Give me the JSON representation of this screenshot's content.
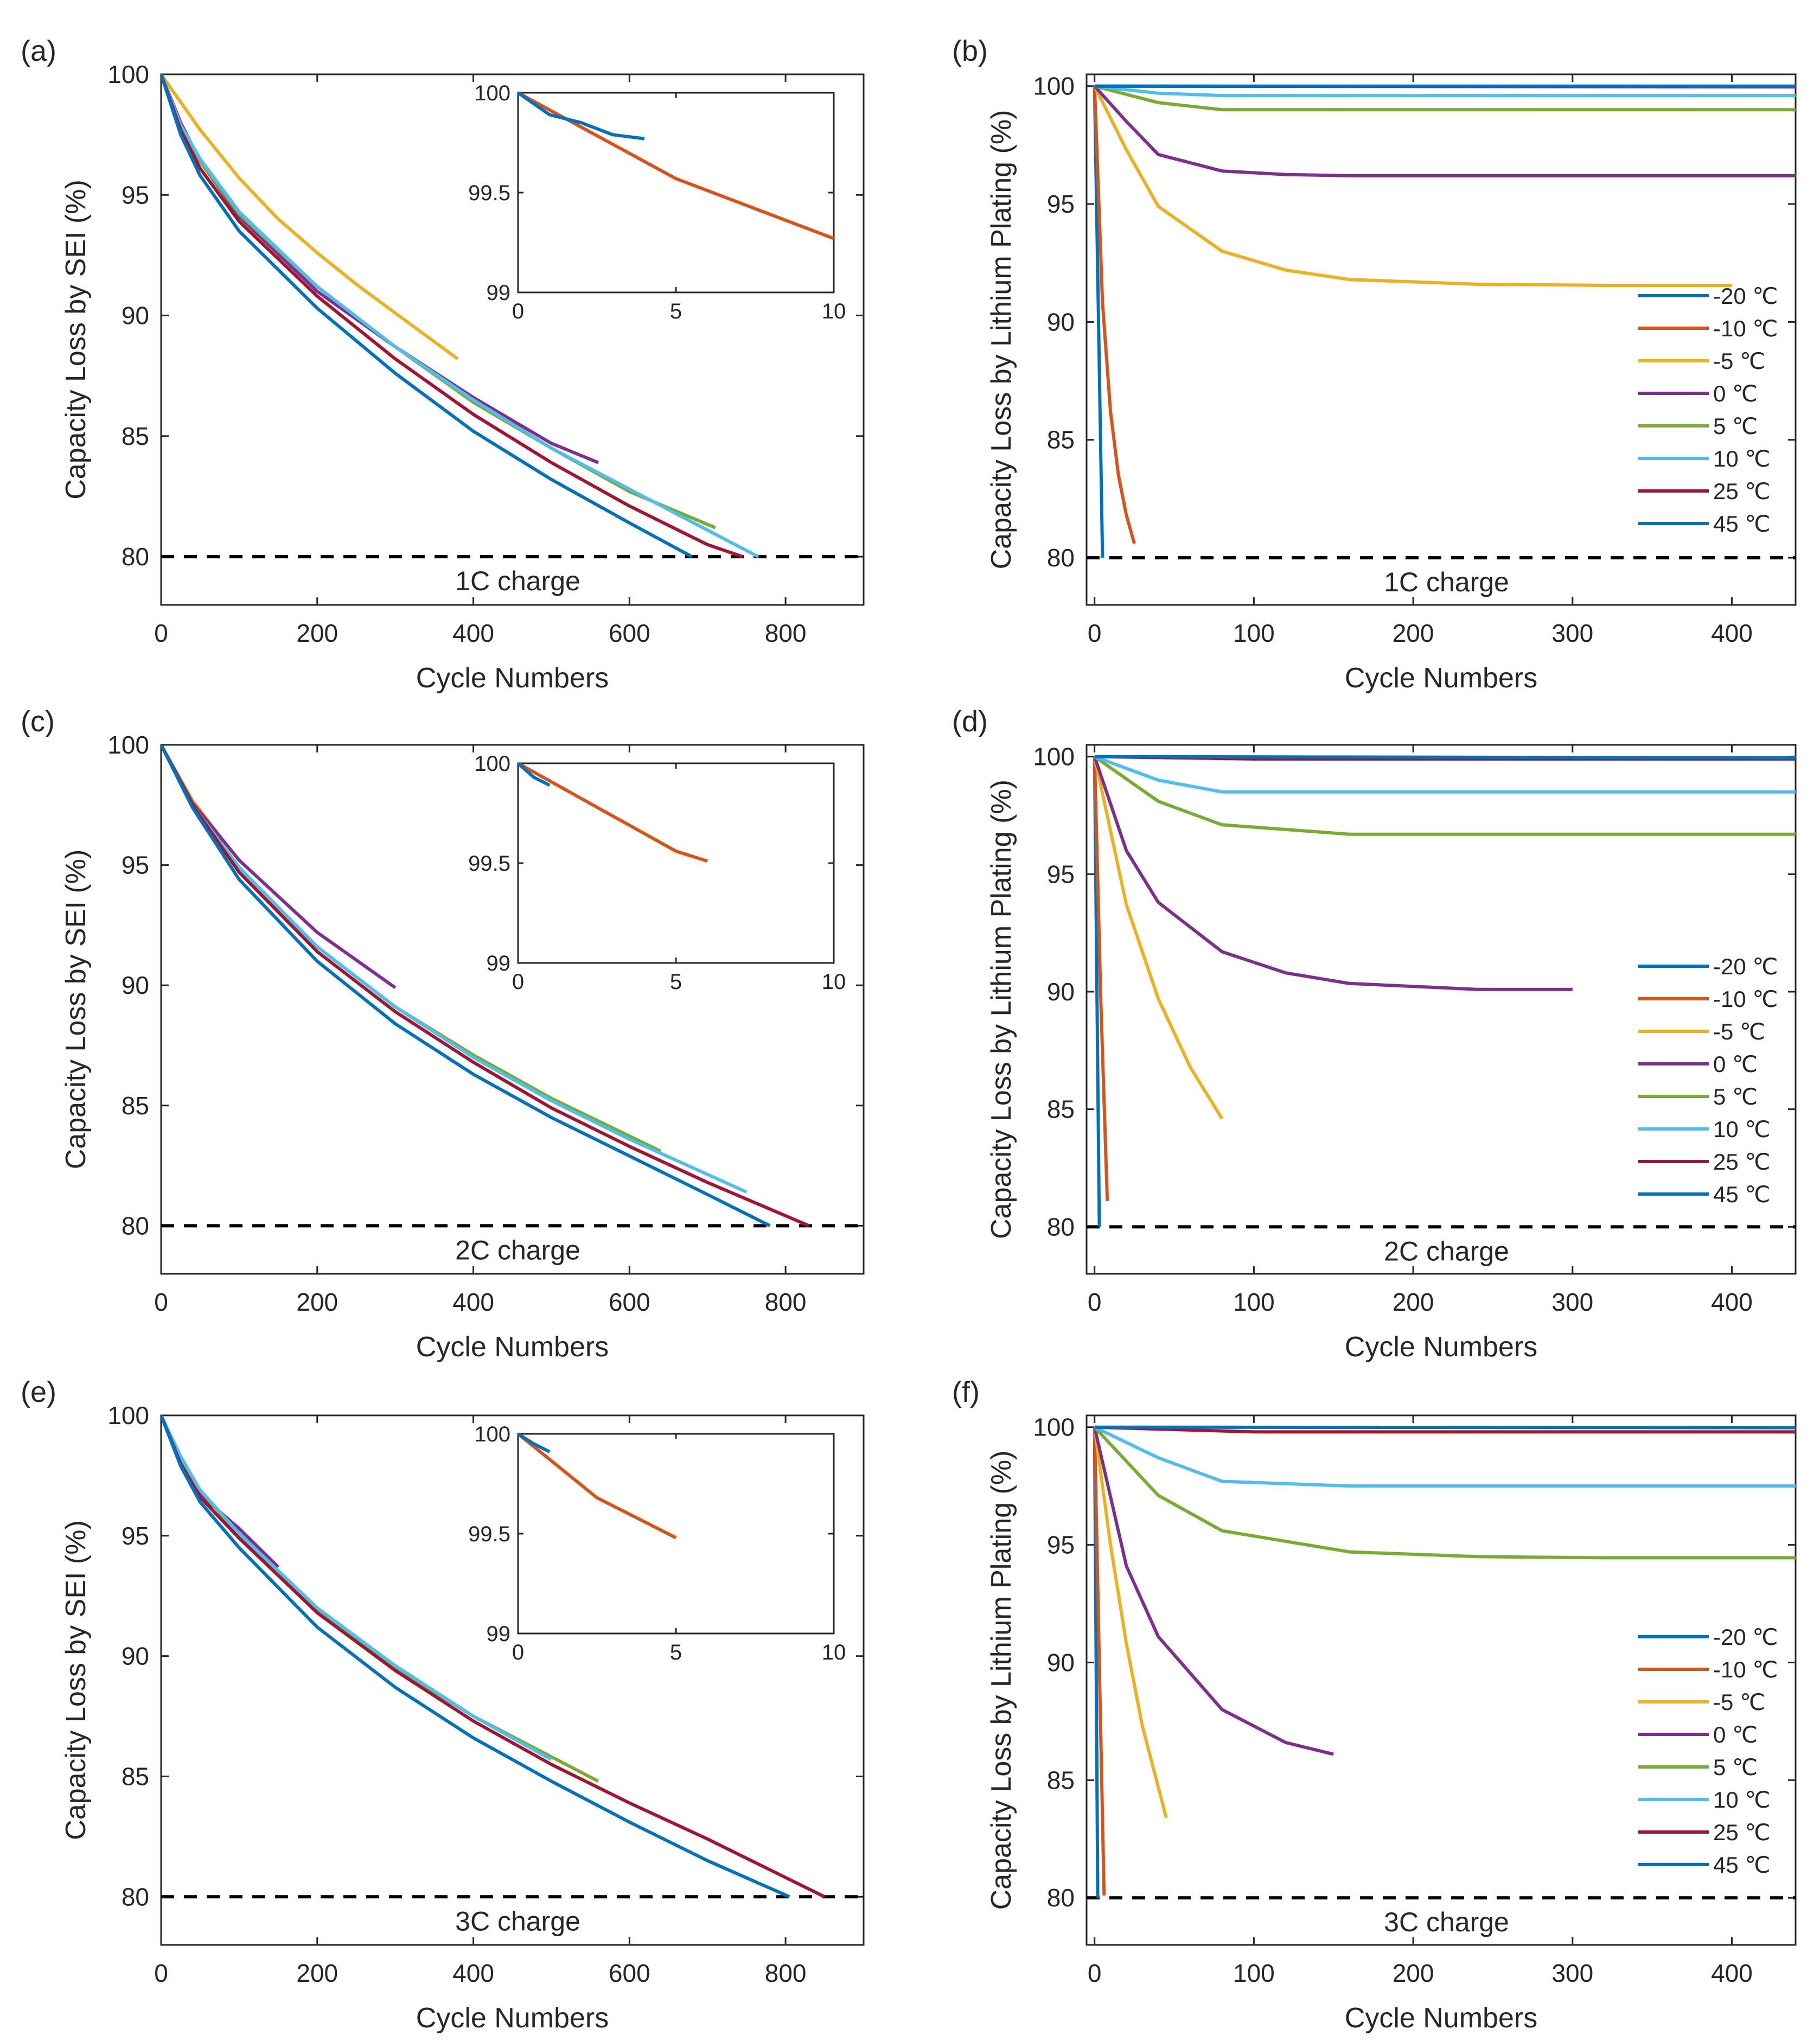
{
  "figure": {
    "series_names": [
      "-20 ℃",
      "-10 ℃",
      "-5 ℃",
      "0 ℃",
      "5 ℃",
      "10 ℃",
      "25 ℃",
      "45 ℃"
    ],
    "colors": {
      "-20 ℃": "#0072BD",
      "-10 ℃": "#D95319",
      "-5 ℃": "#EDB120",
      "0 ℃": "#7E2F8E",
      "5 ℃": "#77AC30",
      "10 ℃": "#4DBEEE",
      "25 ℃": "#A2142F",
      "45 ℃": "#0072BD"
    }
  },
  "chart_data": [
    {
      "panel": "(a)",
      "type": "line",
      "xlabel": "Cycle Numbers",
      "ylabel": "Capacity Loss by SEI (%)",
      "xlim": [
        0,
        900
      ],
      "ylim": [
        78,
        100
      ],
      "xticks": [
        0,
        200,
        400,
        600,
        800
      ],
      "yticks": [
        80,
        85,
        90,
        95,
        100
      ],
      "reference_line": {
        "y": 80,
        "style": "dashed"
      },
      "annotation": "1C charge",
      "series": [
        {
          "name": "-5 ℃",
          "x": [
            0,
            50,
            100,
            150,
            200,
            250,
            300,
            380
          ],
          "y": [
            100,
            97.7,
            95.7,
            94.0,
            92.6,
            91.3,
            90.1,
            88.2
          ]
        },
        {
          "name": "0 ℃",
          "x": [
            0,
            25,
            50,
            100,
            200,
            300,
            400,
            500,
            560
          ],
          "y": [
            100,
            98.0,
            96.4,
            94.1,
            91.0,
            88.7,
            86.6,
            84.7,
            83.9
          ]
        },
        {
          "name": "5 ℃",
          "x": [
            0,
            25,
            50,
            100,
            200,
            300,
            400,
            500,
            600,
            710
          ],
          "y": [
            100,
            97.9,
            96.4,
            94.2,
            91.2,
            88.7,
            86.4,
            84.5,
            82.7,
            81.2
          ]
        },
        {
          "name": "10 ℃",
          "x": [
            0,
            25,
            50,
            100,
            200,
            300,
            400,
            500,
            600,
            700,
            765
          ],
          "y": [
            100,
            97.9,
            96.5,
            94.3,
            91.2,
            88.7,
            86.5,
            84.5,
            82.8,
            81.1,
            80.0
          ]
        },
        {
          "name": "25 ℃",
          "x": [
            0,
            25,
            50,
            100,
            200,
            300,
            400,
            500,
            600,
            700,
            745
          ],
          "y": [
            100,
            97.7,
            96.1,
            93.9,
            90.8,
            88.2,
            85.9,
            83.9,
            82.1,
            80.5,
            80.0
          ]
        },
        {
          "name": "45 ℃",
          "x": [
            0,
            25,
            50,
            100,
            200,
            300,
            400,
            500,
            600,
            680
          ],
          "y": [
            100,
            97.5,
            95.8,
            93.5,
            90.3,
            87.6,
            85.2,
            83.2,
            81.4,
            80.0
          ]
        }
      ],
      "inset": {
        "xlim": [
          0,
          10
        ],
        "ylim": [
          99,
          100
        ],
        "xticks": [
          0,
          5,
          10
        ],
        "yticks": [
          "99",
          "99.5",
          "100"
        ],
        "series": [
          {
            "name": "-10 ℃",
            "x": [
              0,
              5,
              10
            ],
            "y": [
              100,
              99.57,
              99.27
            ]
          },
          {
            "name": "-20 ℃",
            "x": [
              0,
              1,
              2,
              3,
              4
            ],
            "y": [
              100,
              99.89,
              99.85,
              99.79,
              99.77
            ]
          }
        ]
      }
    },
    {
      "panel": "(b)",
      "type": "line",
      "xlabel": "Cycle Numbers",
      "ylabel": "Capacity Loss by Lithium Plating (%)",
      "xlim": [
        -5,
        440
      ],
      "ylim": [
        78,
        100.5
      ],
      "xticks": [
        0,
        100,
        200,
        300,
        400
      ],
      "yticks": [
        80,
        85,
        90,
        95,
        100
      ],
      "reference_line": {
        "y": 80,
        "style": "dashed"
      },
      "annotation": "1C charge",
      "legend_position": "lower-right",
      "series": [
        {
          "name": "-20 ℃",
          "x": [
            0,
            5
          ],
          "y": [
            100,
            80.0
          ]
        },
        {
          "name": "-10 ℃",
          "x": [
            0,
            5,
            10,
            15,
            20,
            25
          ],
          "y": [
            100,
            90.8,
            86.2,
            83.5,
            81.8,
            80.6
          ]
        },
        {
          "name": "-5 ℃",
          "x": [
            0,
            20,
            40,
            80,
            120,
            160,
            240,
            320,
            400
          ],
          "y": [
            100,
            97.3,
            94.9,
            93.0,
            92.2,
            91.8,
            91.6,
            91.55,
            91.55
          ]
        },
        {
          "name": "0 ℃",
          "x": [
            0,
            20,
            40,
            80,
            120,
            160,
            240,
            320,
            440
          ],
          "y": [
            100,
            98.5,
            97.1,
            96.4,
            96.25,
            96.2,
            96.2,
            96.2,
            96.2
          ]
        },
        {
          "name": "5 ℃",
          "x": [
            0,
            40,
            80,
            160,
            440
          ],
          "y": [
            100,
            99.3,
            99.0,
            99.0,
            99.0
          ]
        },
        {
          "name": "10 ℃",
          "x": [
            0,
            40,
            80,
            440
          ],
          "y": [
            100,
            99.7,
            99.6,
            99.6
          ]
        },
        {
          "name": "25 ℃",
          "x": [
            0,
            440
          ],
          "y": [
            100,
            99.97
          ]
        },
        {
          "name": "45 ℃",
          "x": [
            0,
            440
          ],
          "y": [
            100,
            100
          ]
        }
      ]
    },
    {
      "panel": "(c)",
      "type": "line",
      "xlabel": "Cycle Numbers",
      "ylabel": "Capacity Loss by SEI (%)",
      "xlim": [
        0,
        900
      ],
      "ylim": [
        78,
        100
      ],
      "xticks": [
        0,
        200,
        400,
        600,
        800
      ],
      "yticks": [
        80,
        85,
        90,
        95,
        100
      ],
      "reference_line": {
        "y": 80,
        "style": "dashed"
      },
      "annotation": "2C charge",
      "series": [
        {
          "name": "-5 ℃",
          "x": [
            0,
            40,
            80
          ],
          "y": [
            100,
            97.7,
            96.0
          ]
        },
        {
          "name": "0 ℃",
          "x": [
            0,
            40,
            100,
            200,
            300
          ],
          "y": [
            100,
            97.6,
            95.2,
            92.2,
            89.9
          ]
        },
        {
          "name": "5 ℃",
          "x": [
            0,
            40,
            100,
            200,
            300,
            400,
            500,
            640
          ],
          "y": [
            100,
            97.5,
            94.9,
            91.6,
            89.1,
            87.1,
            85.3,
            83.1
          ]
        },
        {
          "name": "10 ℃",
          "x": [
            0,
            40,
            100,
            200,
            300,
            400,
            500,
            600,
            750
          ],
          "y": [
            100,
            97.5,
            94.9,
            91.6,
            89.1,
            87.0,
            85.2,
            83.6,
            81.4
          ]
        },
        {
          "name": "25 ℃",
          "x": [
            0,
            40,
            100,
            200,
            300,
            400,
            500,
            600,
            700,
            830
          ],
          "y": [
            100,
            97.5,
            94.7,
            91.4,
            88.9,
            86.8,
            84.9,
            83.3,
            81.8,
            80.0
          ]
        },
        {
          "name": "45 ℃",
          "x": [
            0,
            40,
            100,
            200,
            300,
            400,
            500,
            600,
            700,
            780
          ],
          "y": [
            100,
            97.4,
            94.4,
            91.0,
            88.4,
            86.3,
            84.5,
            82.9,
            81.3,
            80.0
          ]
        }
      ],
      "inset": {
        "xlim": [
          0,
          10
        ],
        "ylim": [
          99,
          100
        ],
        "xticks": [
          0,
          5,
          10
        ],
        "yticks": [
          "99",
          "99.5",
          "100"
        ],
        "series": [
          {
            "name": "-10 ℃",
            "x": [
              0,
              5,
              6
            ],
            "y": [
              100,
              99.56,
              99.51
            ]
          },
          {
            "name": "-20 ℃",
            "x": [
              0,
              0.5,
              1
            ],
            "y": [
              100,
              99.93,
              99.89
            ]
          }
        ]
      }
    },
    {
      "panel": "(d)",
      "type": "line",
      "xlabel": "Cycle Numbers",
      "ylabel": "Capacity Loss by Lithium Plating (%)",
      "xlim": [
        -5,
        440
      ],
      "ylim": [
        78,
        100.5
      ],
      "xticks": [
        0,
        100,
        200,
        300,
        400
      ],
      "yticks": [
        80,
        85,
        90,
        95,
        100
      ],
      "reference_line": {
        "y": 80,
        "style": "dashed"
      },
      "annotation": "2C charge",
      "legend_position": "lower-right",
      "series": [
        {
          "name": "-20 ℃",
          "x": [
            0,
            3
          ],
          "y": [
            100,
            80.0
          ]
        },
        {
          "name": "-10 ℃",
          "x": [
            0,
            4,
            8
          ],
          "y": [
            100,
            89.5,
            81.1
          ]
        },
        {
          "name": "-5 ℃",
          "x": [
            0,
            20,
            40,
            60,
            80
          ],
          "y": [
            100,
            93.7,
            89.7,
            86.8,
            84.6
          ]
        },
        {
          "name": "0 ℃",
          "x": [
            0,
            20,
            40,
            80,
            120,
            160,
            240,
            300
          ],
          "y": [
            100,
            96.0,
            93.8,
            91.7,
            90.8,
            90.35,
            90.1,
            90.1
          ]
        },
        {
          "name": "5 ℃",
          "x": [
            0,
            40,
            80,
            160,
            440
          ],
          "y": [
            100,
            98.1,
            97.1,
            96.7,
            96.7
          ]
        },
        {
          "name": "10 ℃",
          "x": [
            0,
            40,
            80,
            440
          ],
          "y": [
            100,
            99.0,
            98.5,
            98.5
          ]
        },
        {
          "name": "25 ℃",
          "x": [
            0,
            100,
            440
          ],
          "y": [
            100,
            99.9,
            99.9
          ]
        },
        {
          "name": "45 ℃",
          "x": [
            0,
            440
          ],
          "y": [
            100,
            99.95
          ]
        }
      ]
    },
    {
      "panel": "(e)",
      "type": "line",
      "xlabel": "Cycle Numbers",
      "ylabel": "Capacity Loss by SEI (%)",
      "xlim": [
        0,
        900
      ],
      "ylim": [
        78,
        100
      ],
      "xticks": [
        0,
        200,
        400,
        600,
        800
      ],
      "yticks": [
        80,
        85,
        90,
        95,
        100
      ],
      "reference_line": {
        "y": 80,
        "style": "dashed"
      },
      "annotation": "3C charge",
      "series": [
        {
          "name": "0 ℃",
          "x": [
            0,
            25,
            50,
            100,
            150
          ],
          "y": [
            100,
            98.1,
            96.7,
            95.3,
            93.7
          ]
        },
        {
          "name": "5 ℃",
          "x": [
            0,
            25,
            50,
            100,
            200,
            300,
            400,
            560
          ],
          "y": [
            100,
            98.2,
            96.9,
            95.0,
            91.9,
            89.5,
            87.5,
            84.8
          ]
        },
        {
          "name": "10 ℃",
          "x": [
            0,
            25,
            50,
            100,
            200,
            300,
            400,
            500
          ],
          "y": [
            100,
            98.3,
            96.9,
            95.1,
            92.0,
            89.6,
            87.5,
            85.7
          ]
        },
        {
          "name": "25 ℃",
          "x": [
            0,
            25,
            50,
            100,
            200,
            300,
            400,
            500,
            600,
            700,
            850
          ],
          "y": [
            100,
            98.0,
            96.6,
            94.9,
            91.8,
            89.4,
            87.3,
            85.5,
            83.9,
            82.4,
            80.0
          ]
        },
        {
          "name": "45 ℃",
          "x": [
            0,
            25,
            50,
            100,
            200,
            300,
            400,
            500,
            600,
            700,
            805
          ],
          "y": [
            100,
            97.9,
            96.4,
            94.5,
            91.2,
            88.7,
            86.6,
            84.8,
            83.1,
            81.5,
            80.0
          ]
        }
      ],
      "inset": {
        "xlim": [
          0,
          10
        ],
        "ylim": [
          99,
          100
        ],
        "xticks": [
          0,
          5,
          10
        ],
        "yticks": [
          "99",
          "99.5",
          "100"
        ],
        "series": [
          {
            "name": "-10 ℃",
            "x": [
              0,
              2.5,
              5
            ],
            "y": [
              100,
              99.68,
              99.48
            ]
          },
          {
            "name": "-20 ℃",
            "x": [
              0,
              0.5,
              1
            ],
            "y": [
              100,
              99.95,
              99.91
            ]
          }
        ]
      }
    },
    {
      "panel": "(f)",
      "type": "line",
      "xlabel": "Cycle Numbers",
      "ylabel": "Capacity Loss by Lithium Plating (%)",
      "xlim": [
        -5,
        440
      ],
      "ylim": [
        78,
        100.5
      ],
      "xticks": [
        0,
        100,
        200,
        300,
        400
      ],
      "yticks": [
        80,
        85,
        90,
        95,
        100
      ],
      "reference_line": {
        "y": 80,
        "style": "dashed"
      },
      "annotation": "3C charge",
      "legend_position": "lower-right",
      "series": [
        {
          "name": "-20 ℃",
          "x": [
            0,
            2
          ],
          "y": [
            100,
            80.0
          ]
        },
        {
          "name": "-10 ℃",
          "x": [
            0,
            3,
            6
          ],
          "y": [
            100,
            89.9,
            80.1
          ]
        },
        {
          "name": "-5 ℃",
          "x": [
            0,
            10,
            20,
            30,
            45
          ],
          "y": [
            100,
            95.0,
            90.8,
            87.3,
            83.4
          ]
        },
        {
          "name": "0 ℃",
          "x": [
            0,
            20,
            40,
            80,
            120,
            150
          ],
          "y": [
            100,
            94.1,
            91.1,
            88.0,
            86.6,
            86.1
          ]
        },
        {
          "name": "5 ℃",
          "x": [
            0,
            40,
            80,
            160,
            240,
            320,
            440
          ],
          "y": [
            100,
            97.1,
            95.6,
            94.7,
            94.5,
            94.45,
            94.45
          ]
        },
        {
          "name": "10 ℃",
          "x": [
            0,
            40,
            80,
            160,
            440
          ],
          "y": [
            100,
            98.7,
            97.7,
            97.5,
            97.5
          ]
        },
        {
          "name": "25 ℃",
          "x": [
            0,
            100,
            440
          ],
          "y": [
            100,
            99.8,
            99.8
          ]
        },
        {
          "name": "45 ℃",
          "x": [
            0,
            440
          ],
          "y": [
            100,
            99.98
          ]
        }
      ]
    }
  ]
}
